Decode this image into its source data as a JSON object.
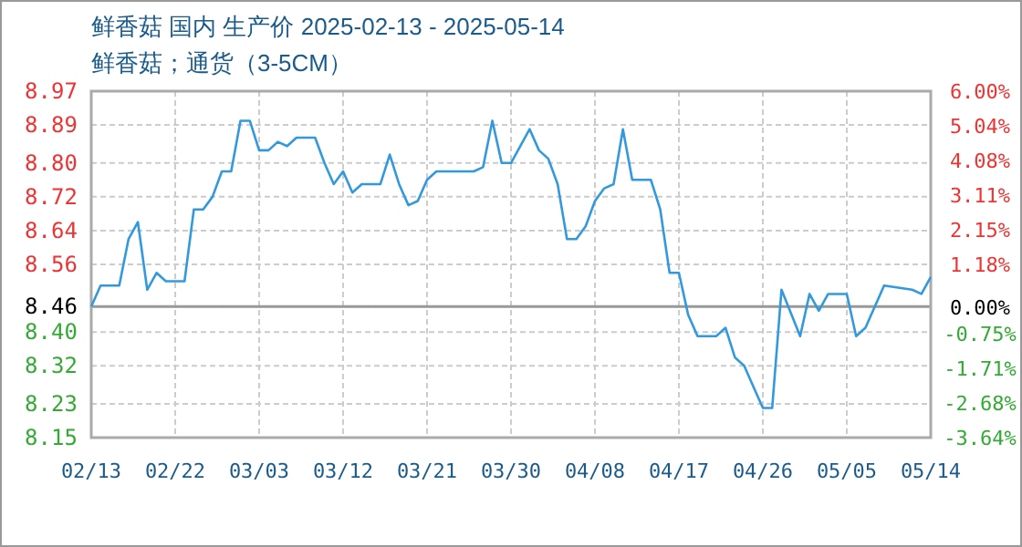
{
  "chart_data": {
    "type": "line",
    "title": "鲜香菇 国内 生产价 2025-02-13 - 2025-05-14",
    "subtitle": "鲜香菇；通货（3-5CM）",
    "x": [
      "2025-02-13",
      "2025-02-14",
      "2025-02-16",
      "2025-02-17",
      "2025-02-18",
      "2025-02-19",
      "2025-02-20",
      "2025-02-21",
      "2025-02-23",
      "2025-02-24",
      "2025-02-25",
      "2025-02-26",
      "2025-02-27",
      "2025-02-28",
      "2025-03-01",
      "2025-03-02",
      "2025-03-03",
      "2025-03-04",
      "2025-03-05",
      "2025-03-06",
      "2025-03-07",
      "2025-03-09",
      "2025-03-10",
      "2025-03-11",
      "2025-03-12",
      "2025-03-13",
      "2025-03-14",
      "2025-03-16",
      "2025-03-17",
      "2025-03-18",
      "2025-03-19",
      "2025-03-20",
      "2025-03-21",
      "2025-03-22",
      "2025-03-26",
      "2025-03-27",
      "2025-03-28",
      "2025-03-29",
      "2025-03-30",
      "2025-04-01",
      "2025-04-02",
      "2025-04-03",
      "2025-04-04",
      "2025-04-05",
      "2025-04-06",
      "2025-04-07",
      "2025-04-08",
      "2025-04-09",
      "2025-04-10",
      "2025-04-11",
      "2025-04-12",
      "2025-04-14",
      "2025-04-15",
      "2025-04-16",
      "2025-04-17",
      "2025-04-18",
      "2025-04-19",
      "2025-04-21",
      "2025-04-22",
      "2025-04-23",
      "2025-04-24",
      "2025-04-25",
      "2025-04-26",
      "2025-04-27",
      "2025-04-28",
      "2025-04-30",
      "2025-05-01",
      "2025-05-02",
      "2025-05-03",
      "2025-05-05",
      "2025-05-06",
      "2025-05-07",
      "2025-05-09",
      "2025-05-12",
      "2025-05-13",
      "2025-05-14"
    ],
    "series": [
      {
        "color": "#3399dd",
        "values": [
          8.46,
          8.51,
          8.51,
          8.62,
          8.66,
          8.5,
          8.54,
          8.52,
          8.52,
          8.69,
          8.69,
          8.72,
          8.78,
          8.78,
          8.9,
          8.9,
          8.83,
          8.83,
          8.85,
          8.84,
          8.86,
          8.86,
          8.8,
          8.75,
          8.78,
          8.73,
          8.75,
          8.75,
          8.82,
          8.75,
          8.7,
          8.71,
          8.76,
          8.78,
          8.78,
          8.79,
          8.9,
          8.8,
          8.8,
          8.88,
          8.83,
          8.81,
          8.75,
          8.62,
          8.62,
          8.65,
          8.71,
          8.74,
          8.75,
          8.88,
          8.76,
          8.76,
          8.69,
          8.54,
          8.54,
          8.44,
          8.39,
          8.39,
          8.41,
          8.34,
          8.32,
          8.27,
          8.22,
          8.22,
          8.5,
          8.39,
          8.49,
          8.45,
          8.49,
          8.49,
          8.39,
          8.41,
          8.51,
          8.5,
          8.49,
          8.53
        ]
      }
    ],
    "xlim": [
      "2025-02-13",
      "2025-05-14"
    ],
    "xticks": [
      {
        "value": "2025-02-13",
        "label": "02/13"
      },
      {
        "value": "2025-02-22",
        "label": "02/22"
      },
      {
        "value": "2025-03-03",
        "label": "03/03"
      },
      {
        "value": "2025-03-12",
        "label": "03/12"
      },
      {
        "value": "2025-03-21",
        "label": "03/21"
      },
      {
        "value": "2025-03-30",
        "label": "03/30"
      },
      {
        "value": "2025-04-08",
        "label": "04/08"
      },
      {
        "value": "2025-04-17",
        "label": "04/17"
      },
      {
        "value": "2025-04-26",
        "label": "04/26"
      },
      {
        "value": "2025-05-05",
        "label": "05/05"
      },
      {
        "value": "2025-05-14",
        "label": "05/14"
      }
    ],
    "ylim": [
      8.15,
      8.97
    ],
    "yticks": [
      8.97,
      8.89,
      {
        "value": 8.8,
        "label": "8.80"
      },
      8.72,
      8.64,
      8.56,
      8.46,
      {
        "value": 8.4,
        "label": "8.40"
      },
      8.32,
      8.23,
      8.15
    ],
    "y2lim": [
      -3.64,
      6.0
    ],
    "y2ticks": [
      {
        "value": 6.0,
        "label": "6.00%"
      },
      {
        "value": 5.04,
        "label": "5.04%"
      },
      {
        "value": 4.08,
        "label": "4.08%"
      },
      {
        "value": 3.11,
        "label": "3.11%"
      },
      {
        "value": 2.15,
        "label": "2.15%"
      },
      {
        "value": 1.18,
        "label": "1.18%"
      },
      {
        "value": 0,
        "label": "0.00%"
      },
      {
        "value": -0.75,
        "label": "-0.75%"
      },
      {
        "value": -1.71,
        "label": "-1.71%"
      },
      {
        "value": -2.68,
        "label": "-2.68%"
      },
      {
        "value": -3.64,
        "label": "-3.64%"
      }
    ],
    "ref_lines": [
      {
        "axis": "y",
        "value": 8.46,
        "color": "#999999"
      }
    ],
    "grid": true,
    "line_style": "solid",
    "marker": "none"
  }
}
